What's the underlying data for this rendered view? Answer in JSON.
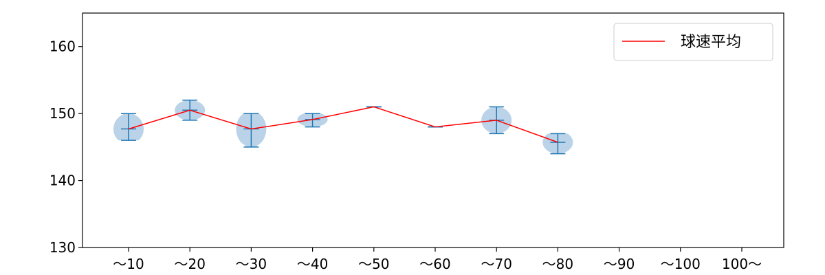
{
  "chart_data": {
    "type": "violin",
    "categories": [
      "～10",
      "～20",
      "～30",
      "～40",
      "～50",
      "～60",
      "～70",
      "～80",
      "～90",
      "～100",
      "100～"
    ],
    "ylim": [
      130,
      165
    ],
    "yticks": [
      130,
      140,
      150,
      160
    ],
    "grid": false,
    "legend": {
      "position": "top-right",
      "entries": [
        "球速平均"
      ]
    },
    "colors": {
      "violin": "#9ec1de",
      "whisker": "#1f77b4",
      "mean_line": "#ff0000"
    },
    "series": [
      {
        "name": "球速平均",
        "values": [
          147.7,
          150.5,
          147.7,
          149.1,
          151.0,
          148.0,
          149.0,
          145.7,
          null,
          null,
          null
        ]
      }
    ],
    "distributions": [
      {
        "category": "～10",
        "min": 146,
        "max": 150,
        "mean": 147.7
      },
      {
        "category": "～20",
        "min": 149,
        "max": 152,
        "mean": 150.5
      },
      {
        "category": "～30",
        "min": 145,
        "max": 150,
        "mean": 147.7
      },
      {
        "category": "～40",
        "min": 148,
        "max": 150,
        "mean": 149.1
      },
      {
        "category": "～50",
        "min": 151,
        "max": 151,
        "mean": 151.0
      },
      {
        "category": "～60",
        "min": 148,
        "max": 148,
        "mean": 148.0
      },
      {
        "category": "～70",
        "min": 147,
        "max": 151,
        "mean": 149.0
      },
      {
        "category": "～80",
        "min": 144,
        "max": 147,
        "mean": 145.7
      }
    ]
  }
}
